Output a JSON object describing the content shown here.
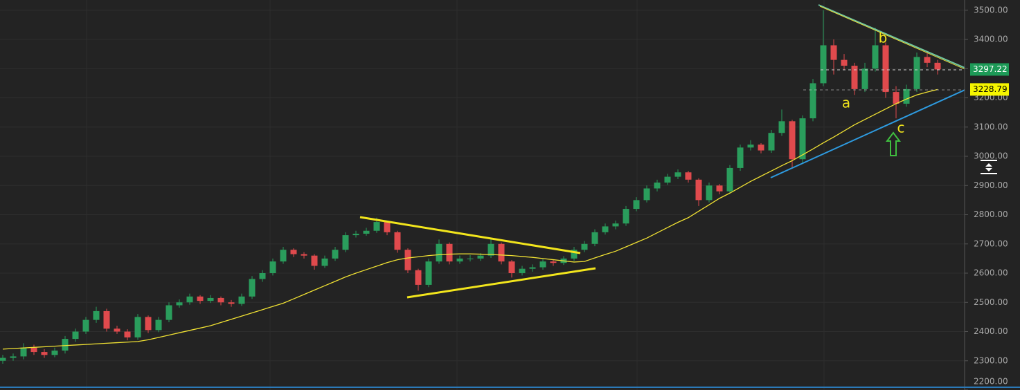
{
  "chart_data": {
    "type": "candlestick",
    "open": [
      2300,
      2310,
      2315,
      2345,
      2330,
      2320,
      2335,
      2375,
      2400,
      2440,
      2470,
      2410,
      2400,
      2380,
      2450,
      2405,
      2440,
      2490,
      2500,
      2520,
      2505,
      2515,
      2500,
      2495,
      2520,
      2580,
      2600,
      2640,
      2680,
      2665,
      2660,
      2625,
      2650,
      2680,
      2730,
      2735,
      2745,
      2775,
      2740,
      2680,
      2610,
      2560,
      2640,
      2700,
      2640,
      2650,
      2650,
      2660,
      2700,
      2640,
      2600,
      2615,
      2620,
      2640,
      2635,
      2650,
      2680,
      2700,
      2740,
      2760,
      2770,
      2820,
      2850,
      2890,
      2910,
      2930,
      2945,
      2920,
      2850,
      2900,
      2880,
      2960,
      3030,
      3040,
      3020,
      3080,
      3120,
      2990,
      3130,
      3250,
      3380,
      3330,
      3310,
      3230,
      3300,
      3380,
      3220,
      3180,
      3230,
      3340,
      3320
    ],
    "high": [
      2320,
      2325,
      2360,
      2355,
      2340,
      2345,
      2385,
      2410,
      2450,
      2485,
      2478,
      2420,
      2408,
      2460,
      2455,
      2450,
      2500,
      2510,
      2530,
      2525,
      2525,
      2520,
      2508,
      2530,
      2590,
      2610,
      2650,
      2690,
      2685,
      2672,
      2665,
      2660,
      2690,
      2740,
      2745,
      2755,
      2790,
      2780,
      2745,
      2685,
      2615,
      2650,
      2715,
      2705,
      2660,
      2662,
      2668,
      2720,
      2705,
      2645,
      2625,
      2630,
      2648,
      2645,
      2658,
      2690,
      2710,
      2750,
      2770,
      2780,
      2830,
      2860,
      2900,
      2920,
      2940,
      2955,
      2950,
      2925,
      2910,
      2905,
      2970,
      3040,
      3055,
      3045,
      3090,
      3160,
      3125,
      3140,
      3265,
      3500,
      3400,
      3350,
      3320,
      3320,
      3440,
      3390,
      3240,
      3245,
      3355,
      3360,
      3330
    ],
    "low": [
      2290,
      2300,
      2305,
      2320,
      2310,
      2312,
      2325,
      2365,
      2392,
      2430,
      2400,
      2392,
      2370,
      2372,
      2395,
      2398,
      2432,
      2482,
      2492,
      2495,
      2498,
      2490,
      2485,
      2488,
      2512,
      2570,
      2592,
      2632,
      2655,
      2650,
      2612,
      2618,
      2642,
      2672,
      2722,
      2728,
      2738,
      2730,
      2670,
      2600,
      2540,
      2552,
      2632,
      2630,
      2632,
      2640,
      2642,
      2652,
      2630,
      2585,
      2592,
      2605,
      2612,
      2625,
      2628,
      2642,
      2672,
      2692,
      2732,
      2750,
      2762,
      2812,
      2842,
      2880,
      2902,
      2922,
      2910,
      2830,
      2842,
      2870,
      2872,
      2950,
      3020,
      3010,
      3012,
      3070,
      2960,
      2975,
      3120,
      3240,
      3280,
      3295,
      3210,
      3220,
      3290,
      3200,
      3130,
      3170,
      3220,
      3305,
      3280
    ],
    "close": [
      2310,
      2315,
      2345,
      2330,
      2320,
      2335,
      2375,
      2400,
      2440,
      2470,
      2410,
      2400,
      2380,
      2450,
      2405,
      2440,
      2490,
      2500,
      2520,
      2505,
      2515,
      2500,
      2495,
      2520,
      2580,
      2600,
      2640,
      2680,
      2665,
      2660,
      2625,
      2650,
      2680,
      2730,
      2735,
      2745,
      2775,
      2740,
      2680,
      2610,
      2560,
      2640,
      2700,
      2640,
      2650,
      2650,
      2660,
      2700,
      2640,
      2600,
      2615,
      2620,
      2640,
      2635,
      2650,
      2680,
      2700,
      2740,
      2760,
      2770,
      2820,
      2850,
      2890,
      2910,
      2930,
      2945,
      2920,
      2850,
      2900,
      2880,
      2960,
      3030,
      3040,
      3020,
      3080,
      3120,
      2990,
      3130,
      3250,
      3380,
      3330,
      3310,
      3230,
      3300,
      3380,
      3220,
      3180,
      3230,
      3340,
      3320,
      3297.22
    ],
    "up_color": "#2a9d5c",
    "down_color": "#e04a4d",
    "last_price_color": "#1d9a57",
    "ma": {
      "color": "#f0e133",
      "values": [
        2340,
        2342,
        2344,
        2346,
        2348,
        2350,
        2352,
        2354,
        2356,
        2358,
        2360,
        2362,
        2364,
        2366,
        2372,
        2380,
        2388,
        2396,
        2404,
        2412,
        2420,
        2431,
        2442,
        2453,
        2464,
        2475,
        2486,
        2497,
        2512,
        2527,
        2542,
        2557,
        2572,
        2587,
        2600,
        2612,
        2624,
        2636,
        2646,
        2652,
        2656,
        2660,
        2663,
        2665,
        2666,
        2666,
        2665,
        2664,
        2662,
        2660,
        2657,
        2654,
        2650,
        2646,
        2642,
        2638,
        2640,
        2652,
        2664,
        2675,
        2690,
        2705,
        2720,
        2738,
        2756,
        2774,
        2790,
        2812,
        2834,
        2856,
        2874,
        2894,
        2914,
        2932,
        2950,
        2968,
        2985,
        3005,
        3025,
        3046,
        3066,
        3087,
        3108,
        3126,
        3144,
        3162,
        3180,
        3196,
        3210,
        3220,
        3228.79
      ]
    },
    "ylim": [
      2200,
      3535
    ],
    "yticks": [
      {
        "value": 2200,
        "label": "2200.00"
      },
      {
        "value": 2300,
        "label": "2300.00"
      },
      {
        "value": 2400,
        "label": "2400.00"
      },
      {
        "value": 2500,
        "label": "2500.00"
      },
      {
        "value": 2600,
        "label": "2600.00"
      },
      {
        "value": 2700,
        "label": "2700.00"
      },
      {
        "value": 2800,
        "label": "2800.00"
      },
      {
        "value": 2900,
        "label": "2900.00"
      },
      {
        "value": 3000,
        "label": "3000.00"
      },
      {
        "value": 3100,
        "label": "3100.00"
      },
      {
        "value": 3200,
        "label": "3200.00"
      },
      {
        "value": 3300,
        "label": "3300.00"
      },
      {
        "value": 3400,
        "label": "3400.00"
      },
      {
        "value": 3500,
        "label": "3500.00"
      }
    ],
    "grid": true,
    "annotations": [
      "a",
      "b",
      "c"
    ]
  }
}
